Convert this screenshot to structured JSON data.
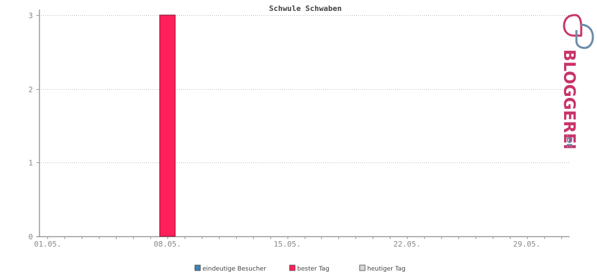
{
  "chart_data": {
    "type": "bar",
    "title": "Schwule Schwaben",
    "x_tick_labels": [
      "01.05.",
      "08.05.",
      "15.05.",
      "22.05.",
      "29.05."
    ],
    "y_ticks": [
      0,
      1,
      2,
      3
    ],
    "ylim": [
      0,
      3
    ],
    "days": 31,
    "grid": true,
    "legend_position": "bottom",
    "series": [
      {
        "name": "eindeutige Besucher",
        "color": "#3c85b5",
        "values": [
          0,
          0,
          0,
          0,
          0,
          0,
          0,
          0,
          0,
          0,
          0,
          0,
          0,
          0,
          0,
          0,
          0,
          0,
          0,
          0,
          0,
          0,
          0,
          0,
          0,
          0,
          0,
          0,
          0,
          0,
          0
        ]
      },
      {
        "name": "bester Tag",
        "color": "#ff1f5a",
        "values": [
          0,
          0,
          0,
          0,
          0,
          0,
          0,
          3,
          0,
          0,
          0,
          0,
          0,
          0,
          0,
          0,
          0,
          0,
          0,
          0,
          0,
          0,
          0,
          0,
          0,
          0,
          0,
          0,
          0,
          0,
          0
        ]
      },
      {
        "name": "heutiger Tag",
        "color": "#d8d8d8",
        "values": [
          0,
          0,
          0,
          0,
          0,
          0,
          0,
          0,
          0,
          0,
          0,
          0,
          0,
          0,
          0,
          0,
          0,
          0,
          0,
          0,
          0,
          0,
          0,
          0,
          0,
          0,
          0,
          0,
          0,
          0,
          0
        ]
      }
    ]
  },
  "brand": {
    "name": "BLOGGEREI",
    "suffix": ".DE",
    "colors": {
      "primary": "#c8336a",
      "secondary": "#6a8aa8"
    }
  }
}
